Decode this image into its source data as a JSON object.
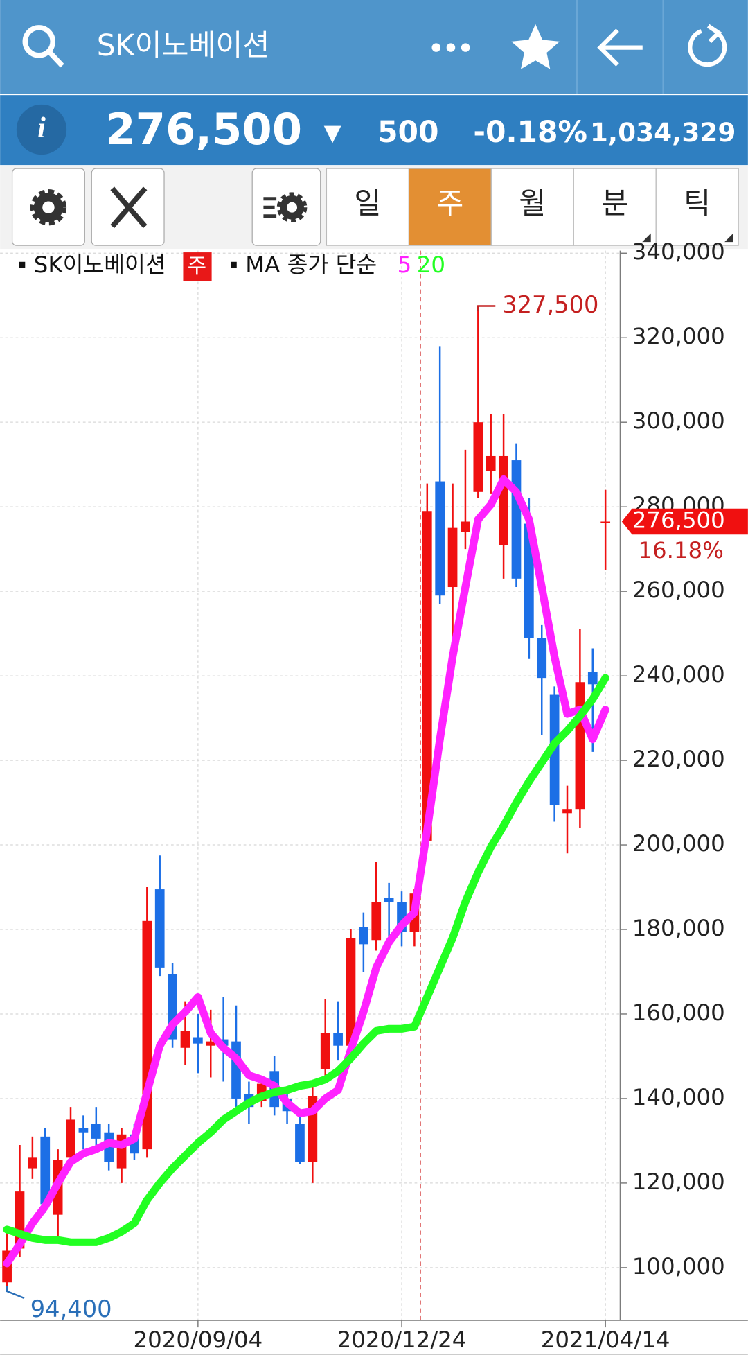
{
  "header": {
    "title": "SK이노베이션"
  },
  "quote": {
    "price": "276,500",
    "direction": "▼",
    "change": "500",
    "change_pct": "-0.18%",
    "volume": "1,034,329"
  },
  "periods": [
    "일",
    "주",
    "월",
    "분",
    "틱"
  ],
  "selected_period": "주",
  "chart_data": {
    "type": "candlestick",
    "legend": {
      "symbol": "SK이노베이션",
      "period": "주",
      "indicator": "MA 종가 단순"
    },
    "categories": [
      null,
      null,
      null,
      null,
      null,
      null,
      null,
      null,
      null,
      null,
      null,
      null,
      null,
      null,
      null,
      "2020/09/04",
      null,
      null,
      null,
      null,
      null,
      null,
      null,
      null,
      null,
      null,
      null,
      null,
      null,
      null,
      null,
      "2020/12/24",
      null,
      null,
      null,
      null,
      null,
      null,
      null,
      null,
      null,
      null,
      null,
      null,
      null,
      null,
      null,
      "2021/04/14"
    ],
    "ohlc": {
      "open": [
        96500,
        104500,
        123500,
        131000,
        112500,
        126000,
        133000,
        134000,
        132000,
        123500,
        131500,
        128000,
        189500,
        169500,
        152000,
        154500,
        152500,
        154000,
        153500,
        141000,
        139500,
        146500,
        140000,
        134000,
        125000,
        147000,
        155500,
        152500,
        180500,
        177500,
        187500,
        186500,
        179500,
        201000,
        286000,
        261000,
        274000,
        283500,
        288500,
        271000,
        291000,
        276000,
        249000,
        235500,
        207500,
        208500,
        241000,
        276500
      ],
      "high": [
        108500,
        129000,
        131000,
        133000,
        128000,
        138000,
        136000,
        138000,
        134000,
        133000,
        134000,
        190000,
        197500,
        172000,
        163000,
        160000,
        161000,
        164000,
        162000,
        144000,
        145000,
        150000,
        142000,
        136000,
        143500,
        163500,
        163000,
        180000,
        184000,
        196000,
        191000,
        189000,
        189500,
        285500,
        318000,
        285500,
        293500,
        327500,
        302000,
        302000,
        295000,
        282000,
        252000,
        237500,
        214000,
        251000,
        246500,
        284000
      ],
      "low": [
        94400,
        102500,
        121000,
        113000,
        107000,
        124000,
        128000,
        128000,
        123000,
        120000,
        125500,
        126000,
        169000,
        152000,
        148000,
        146000,
        145000,
        144000,
        138000,
        134000,
        138000,
        136000,
        134000,
        124500,
        120000,
        145000,
        149000,
        151000,
        170000,
        175000,
        178000,
        176000,
        176000,
        200500,
        257000,
        247000,
        270000,
        282000,
        283000,
        263000,
        261000,
        244000,
        226000,
        205500,
        198000,
        204000,
        222000,
        265000
      ],
      "close": [
        104000,
        118000,
        126000,
        115000,
        125500,
        135000,
        132000,
        130500,
        125000,
        131500,
        127000,
        182000,
        171000,
        154000,
        156000,
        153000,
        153500,
        152500,
        140000,
        138000,
        143500,
        138000,
        137000,
        125000,
        140500,
        155500,
        152500,
        178000,
        176500,
        186500,
        186500,
        179500,
        188500,
        279000,
        259000,
        275000,
        276500,
        300000,
        292000,
        292000,
        263000,
        249000,
        239500,
        209500,
        208500,
        238500,
        238000,
        276500
      ]
    },
    "up_color": "#f01010",
    "down_color": "#1c6fe6",
    "series": [
      {
        "name": "5",
        "color": "#ff22ff",
        "values": [
          101000,
          105500,
          110500,
          114500,
          120000,
          125000,
          127000,
          128000,
          129500,
          129000,
          130500,
          141500,
          152500,
          157500,
          160500,
          164000,
          155500,
          152000,
          149500,
          145500,
          144500,
          143000,
          139000,
          136500,
          137000,
          140000,
          142000,
          151500,
          160500,
          171000,
          177000,
          181000,
          184000,
          203500,
          225000,
          244500,
          261000,
          277000,
          280500,
          286500,
          283500,
          277000,
          261000,
          244500,
          231000,
          232000,
          225000,
          232000
        ]
      },
      {
        "name": "20",
        "color": "#22ff22",
        "values": [
          109000,
          108000,
          107000,
          106500,
          106500,
          106000,
          106000,
          106000,
          107000,
          108500,
          110500,
          116000,
          120000,
          123500,
          126500,
          129500,
          132000,
          135000,
          137000,
          139000,
          140500,
          141500,
          142000,
          143000,
          143500,
          144500,
          146500,
          149500,
          153000,
          156000,
          156500,
          156500,
          157000,
          164000,
          171000,
          178000,
          186500,
          193500,
          199500,
          204500,
          210000,
          215000,
          219500,
          224000,
          227000,
          230500,
          234500,
          239500
        ]
      }
    ],
    "ylim": [
      87500,
      340600
    ],
    "yticks": [
      {
        "value": 100000,
        "label": "100,000"
      },
      {
        "value": 120000,
        "label": "120,000"
      },
      {
        "value": 140000,
        "label": "140,000"
      },
      {
        "value": 160000,
        "label": "160,000"
      },
      {
        "value": 180000,
        "label": "180,000"
      },
      {
        "value": 200000,
        "label": "200,000"
      },
      {
        "value": 220000,
        "label": "220,000"
      },
      {
        "value": 240000,
        "label": "240,000"
      },
      {
        "value": 260000,
        "label": "260,000"
      },
      {
        "value": 280000,
        "label": "280,000"
      },
      {
        "value": 300000,
        "label": "300,000"
      },
      {
        "value": 320000,
        "label": "320,000"
      },
      {
        "value": 340000,
        "label": "340,000"
      }
    ],
    "grid": true,
    "high_label": {
      "value": 327500,
      "label": "327,500"
    },
    "low_label": {
      "value": 94400,
      "label": "94,400"
    },
    "last_price": {
      "value": 276500,
      "label": "276,500"
    },
    "last_change_pct": "16.18%"
  }
}
